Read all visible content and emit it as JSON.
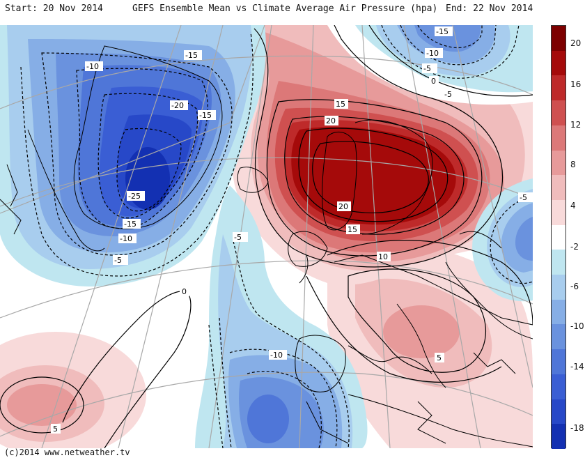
{
  "header": {
    "start": "Start: 20 Nov 2014",
    "title": "GEFS Ensemble Mean vs Climate Average Air Pressure (hpa)",
    "end": "End: 22 Nov 2014"
  },
  "credit": "(c)2014 www.netweather.tv",
  "colorbar": {
    "colors": [
      "#7d0000",
      "#a50a0a",
      "#be2a2a",
      "#cf5050",
      "#dc7878",
      "#e79a9a",
      "#f0bcbc",
      "#f8dada",
      "#ffffff",
      "#bfe6f0",
      "#a8cdee",
      "#86aee6",
      "#6a92de",
      "#4f76d8",
      "#3a5ed4",
      "#2748c8",
      "#1330b2"
    ],
    "ticks": [
      "20",
      "16",
      "12",
      "8",
      "4",
      "-2",
      "-6",
      "-10",
      "-14",
      "-18"
    ]
  },
  "contour_labels": [
    {
      "id": "l1",
      "text": "-15"
    },
    {
      "id": "l2",
      "text": "-10"
    },
    {
      "id": "l3",
      "text": "-20"
    },
    {
      "id": "l4",
      "text": "-15"
    },
    {
      "id": "l5",
      "text": "-25"
    },
    {
      "id": "l6",
      "text": "-15"
    },
    {
      "id": "l7",
      "text": "-10"
    },
    {
      "id": "l8",
      "text": "-5"
    },
    {
      "id": "l9",
      "text": "-15"
    },
    {
      "id": "l10",
      "text": "-10"
    },
    {
      "id": "l11",
      "text": "-5"
    },
    {
      "id": "l12",
      "text": "0"
    },
    {
      "id": "l13",
      "text": "-5"
    },
    {
      "id": "l14",
      "text": "15"
    },
    {
      "id": "l15",
      "text": "20"
    },
    {
      "id": "l16",
      "text": "20"
    },
    {
      "id": "l17",
      "text": "15"
    },
    {
      "id": "l18",
      "text": "10"
    },
    {
      "id": "l19",
      "text": "-5"
    },
    {
      "id": "l20",
      "text": "-5"
    },
    {
      "id": "l21",
      "text": "0"
    },
    {
      "id": "l22",
      "text": "-10"
    },
    {
      "id": "l23",
      "text": "5"
    },
    {
      "id": "l24",
      "text": "5"
    }
  ]
}
